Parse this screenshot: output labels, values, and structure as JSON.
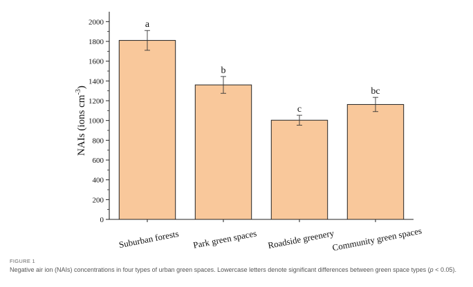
{
  "chart_data": {
    "type": "bar",
    "categories": [
      "Suburban forests",
      "Park green spaces",
      "Roadside greenery",
      "Community green spaces"
    ],
    "values": [
      1810,
      1360,
      1003,
      1162
    ],
    "errors": [
      100,
      85,
      50,
      72
    ],
    "significance_letters": [
      "a",
      "b",
      "c",
      "bc"
    ],
    "title": "",
    "xlabel": "",
    "ylabel_main": "NAIs (ions cm",
    "ylabel_sup": "-3",
    "ylabel_close": ")",
    "ylim": [
      0,
      2100
    ],
    "yticks": [
      0,
      200,
      400,
      600,
      800,
      1000,
      1200,
      1400,
      1600,
      1800,
      2000
    ],
    "bar_color": "#f9c89b",
    "bar_edge_color": "#222222",
    "grid": false,
    "legend": "none"
  },
  "caption": {
    "figure_label": "FIGURE 1",
    "text": "Negative air ion (NAIs) concentrations in four types of urban green spaces. Lowercase letters denote significant differences between green space types (",
    "p_symbol": "p",
    "p_rest": " < 0.05)."
  }
}
